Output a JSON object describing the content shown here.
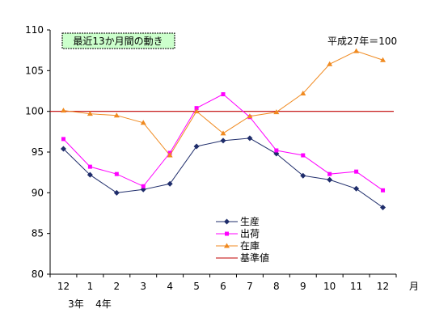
{
  "chart_data": {
    "type": "line",
    "title": "最近13か月間の動き",
    "base_note": "平成27年＝100",
    "categories": [
      "12",
      "1",
      "2",
      "3",
      "4",
      "5",
      "6",
      "7",
      "8",
      "9",
      "10",
      "11",
      "12"
    ],
    "x_unit": "月",
    "year_labels": [
      "3年",
      "4年"
    ],
    "ylim": [
      80,
      110
    ],
    "yticks": [
      80,
      85,
      90,
      95,
      100,
      105,
      110
    ],
    "grid": false,
    "legend_position": "bottom-center",
    "series": [
      {
        "name": "生産",
        "color": "#1f2d6b",
        "marker": "diamond",
        "values": [
          95.4,
          92.2,
          90.0,
          90.4,
          91.1,
          95.7,
          96.4,
          96.7,
          94.8,
          92.1,
          91.6,
          90.5,
          88.2
        ]
      },
      {
        "name": "出荷",
        "color": "#ff00ff",
        "marker": "square",
        "values": [
          96.6,
          93.2,
          92.3,
          90.8,
          94.9,
          100.4,
          102.1,
          99.3,
          95.2,
          94.6,
          92.3,
          92.6,
          90.3
        ]
      },
      {
        "name": "在庫",
        "color": "#f08a20",
        "marker": "triangle",
        "values": [
          100.1,
          99.7,
          99.5,
          98.6,
          94.6,
          100.0,
          97.3,
          99.4,
          99.9,
          102.2,
          105.8,
          107.4,
          106.3
        ]
      },
      {
        "name": "基準値",
        "color": "#c00000",
        "marker": "none",
        "values": [
          100,
          100,
          100,
          100,
          100,
          100,
          100,
          100,
          100,
          100,
          100,
          100,
          100
        ]
      }
    ]
  }
}
